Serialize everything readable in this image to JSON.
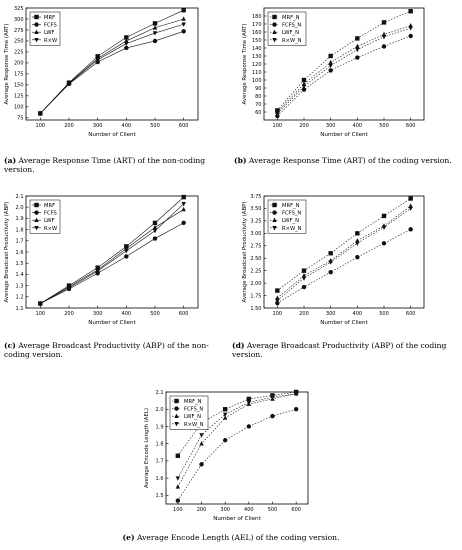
{
  "chart_data": [
    {
      "id": "a",
      "type": "line",
      "panel_label": "(a)",
      "caption": "Average Response Time (ART) of the non-coding version.",
      "xlabel": "Number of Client",
      "ylabel": "Average Response Time (ART)",
      "x": [
        100,
        200,
        300,
        400,
        500,
        600
      ],
      "xticks": [
        100,
        200,
        300,
        400,
        500,
        600
      ],
      "ylim": [
        70,
        325
      ],
      "yticks": [
        75,
        100,
        125,
        150,
        175,
        200,
        225,
        250,
        275,
        300,
        325
      ],
      "legend_position": "top-left",
      "series": [
        {
          "name": "MRF",
          "marker": "square",
          "dash": "solid",
          "values": [
            85,
            155,
            215,
            258,
            290,
            320
          ]
        },
        {
          "name": "FCFS",
          "marker": "circle",
          "dash": "solid",
          "values": [
            85,
            152,
            202,
            234,
            250,
            272
          ]
        },
        {
          "name": "LWF",
          "marker": "triangle-up",
          "dash": "solid",
          "values": [
            85,
            154,
            210,
            250,
            280,
            300
          ]
        },
        {
          "name": "R×W",
          "marker": "triangle-down",
          "dash": "solid",
          "values": [
            85,
            153,
            207,
            244,
            268,
            288
          ]
        }
      ]
    },
    {
      "id": "b",
      "type": "line",
      "panel_label": "(b)",
      "caption": "Average Response Time (ART) of the coding version.",
      "xlabel": "Number of Client",
      "ylabel": "Average Response Time (ART)",
      "x": [
        100,
        200,
        300,
        400,
        500,
        600
      ],
      "xticks": [
        100,
        200,
        300,
        400,
        500,
        600
      ],
      "ylim": [
        50,
        190
      ],
      "yticks": [
        60,
        70,
        80,
        90,
        100,
        110,
        120,
        130,
        140,
        150,
        160,
        170,
        180
      ],
      "legend_position": "top-left",
      "series": [
        {
          "name": "MRF_N",
          "marker": "square",
          "dash": "dotted",
          "values": [
            62,
            100,
            130,
            152,
            172,
            186
          ]
        },
        {
          "name": "FCFS_N",
          "marker": "circle",
          "dash": "dotted",
          "values": [
            55,
            88,
            112,
            128,
            142,
            155
          ]
        },
        {
          "name": "LWF_N",
          "marker": "triangle-up",
          "dash": "dotted",
          "values": [
            60,
            95,
            122,
            142,
            157,
            168
          ]
        },
        {
          "name": "R×W_N",
          "marker": "triangle-down",
          "dash": "dotted",
          "values": [
            58,
            92,
            118,
            138,
            154,
            165
          ]
        }
      ]
    },
    {
      "id": "c",
      "type": "line",
      "panel_label": "(c)",
      "caption": "Average Broadcast Productivity (ABP) of the non-coding version.",
      "xlabel": "Number of Client",
      "ylabel": "Average Broadcast Productivity (ABP)",
      "x": [
        100,
        200,
        300,
        400,
        500,
        600
      ],
      "xticks": [
        100,
        200,
        300,
        400,
        500,
        600
      ],
      "ylim": [
        1.1,
        2.1
      ],
      "yticks": [
        1.1,
        1.2,
        1.3,
        1.4,
        1.5,
        1.6,
        1.7,
        1.8,
        1.9,
        2.0,
        2.1
      ],
      "legend_position": "top-left",
      "series": [
        {
          "name": "MRF",
          "marker": "square",
          "dash": "solid",
          "values": [
            1.14,
            1.3,
            1.46,
            1.65,
            1.86,
            2.09
          ]
        },
        {
          "name": "FCFS",
          "marker": "circle",
          "dash": "solid",
          "values": [
            1.14,
            1.27,
            1.41,
            1.56,
            1.72,
            1.86
          ]
        },
        {
          "name": "LWF",
          "marker": "triangle-up",
          "dash": "solid",
          "values": [
            1.14,
            1.29,
            1.44,
            1.63,
            1.82,
            1.98
          ]
        },
        {
          "name": "R×W",
          "marker": "triangle-down",
          "dash": "solid",
          "values": [
            1.14,
            1.28,
            1.43,
            1.61,
            1.79,
            2.03
          ]
        }
      ]
    },
    {
      "id": "d",
      "type": "line",
      "panel_label": "(d)",
      "caption": "Average Broadcast Productivity (ABP) of the coding version.",
      "xlabel": "Number of Client",
      "ylabel": "Average Broadcast Productivity (ABP)",
      "x": [
        100,
        200,
        300,
        400,
        500,
        600
      ],
      "xticks": [
        100,
        200,
        300,
        400,
        500,
        600
      ],
      "ylim": [
        1.5,
        3.75
      ],
      "yticks": [
        1.5,
        1.75,
        2.0,
        2.25,
        2.5,
        2.75,
        3.0,
        3.25,
        3.5,
        3.75
      ],
      "legend_position": "top-left",
      "series": [
        {
          "name": "MRF_N",
          "marker": "square",
          "dash": "dotted",
          "values": [
            1.85,
            2.25,
            2.6,
            3.0,
            3.35,
            3.7
          ]
        },
        {
          "name": "FCFS_N",
          "marker": "circle",
          "dash": "dotted",
          "values": [
            1.6,
            1.92,
            2.22,
            2.52,
            2.8,
            3.08
          ]
        },
        {
          "name": "LWF_N",
          "marker": "triangle-up",
          "dash": "dotted",
          "values": [
            1.7,
            2.15,
            2.45,
            2.85,
            3.15,
            3.55
          ]
        },
        {
          "name": "R×W_N",
          "marker": "triangle-down",
          "dash": "dotted",
          "values": [
            1.65,
            2.1,
            2.42,
            2.8,
            3.12,
            3.5
          ]
        }
      ]
    },
    {
      "id": "e",
      "type": "line",
      "panel_label": "(e)",
      "caption": "Average Encode Length (AEL) of the coding version.",
      "xlabel": "Number of Client",
      "ylabel": "Average Encode Length (AEL)",
      "x": [
        100,
        200,
        300,
        400,
        500,
        600
      ],
      "xticks": [
        100,
        200,
        300,
        400,
        500,
        600
      ],
      "ylim": [
        1.45,
        2.1
      ],
      "yticks": [
        1.5,
        1.6,
        1.7,
        1.8,
        1.9,
        2.0,
        2.1
      ],
      "legend_position": "top-left",
      "series": [
        {
          "name": "MRF_N",
          "marker": "square",
          "dash": "dotted",
          "values": [
            1.73,
            1.92,
            2.0,
            2.06,
            2.08,
            2.1
          ]
        },
        {
          "name": "FCFS_N",
          "marker": "circle",
          "dash": "dotted",
          "values": [
            1.47,
            1.68,
            1.82,
            1.9,
            1.96,
            2.0
          ]
        },
        {
          "name": "LWF_N",
          "marker": "triangle-up",
          "dash": "dotted",
          "values": [
            1.55,
            1.8,
            1.95,
            2.03,
            2.06,
            2.09
          ]
        },
        {
          "name": "R×W_N",
          "marker": "triangle-down",
          "dash": "dotted",
          "values": [
            1.6,
            1.85,
            1.97,
            2.04,
            2.07,
            2.09
          ]
        }
      ]
    }
  ]
}
